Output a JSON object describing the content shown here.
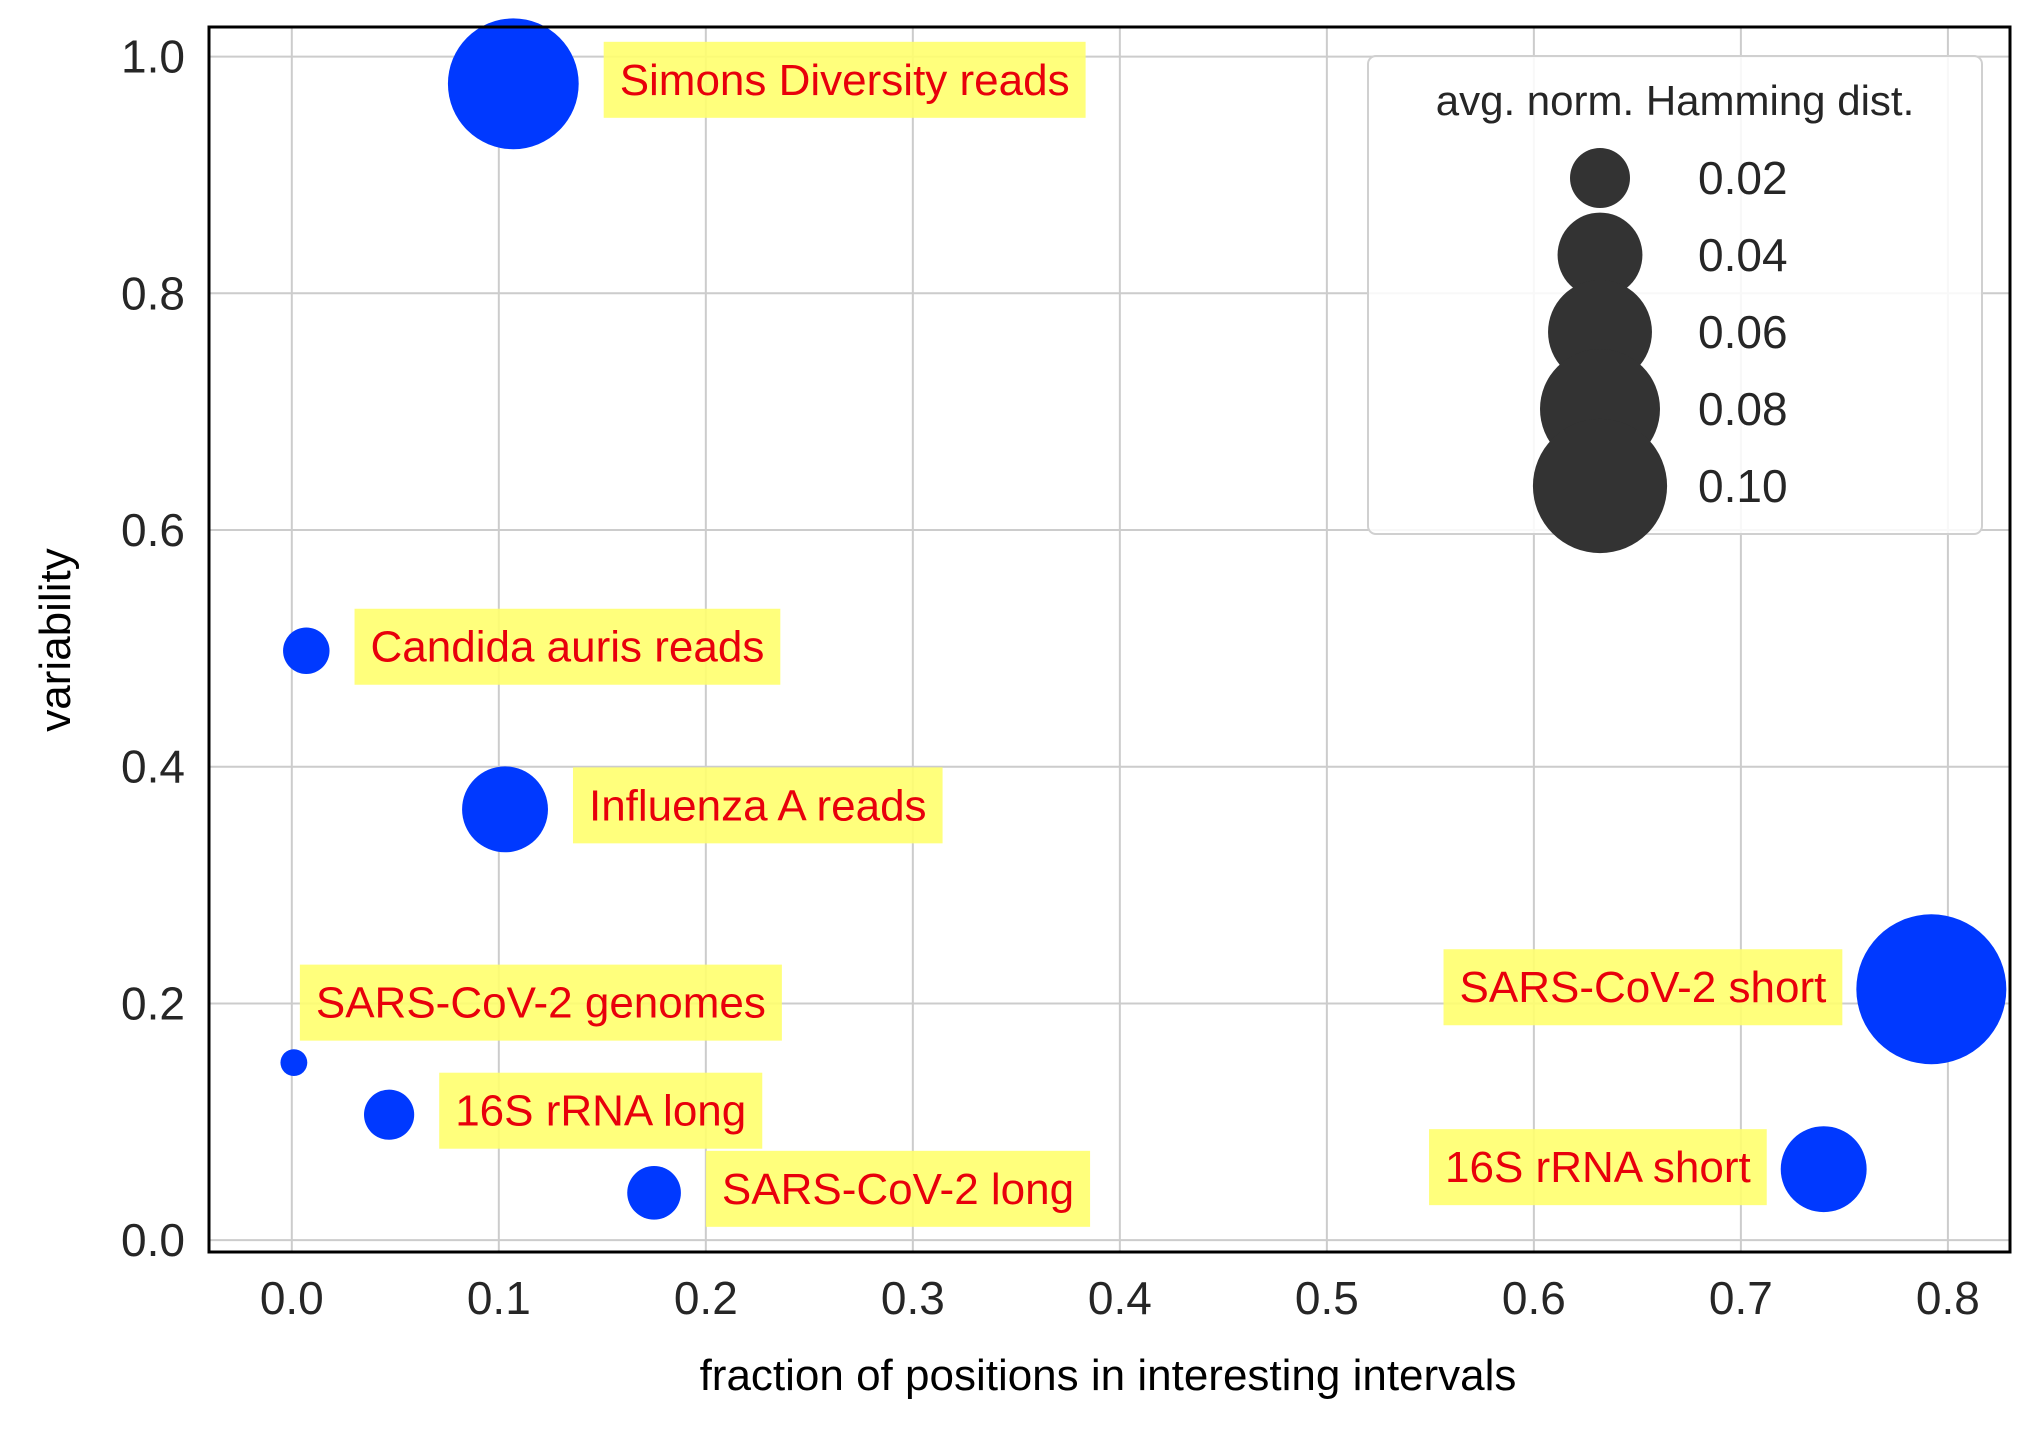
{
  "chart_data": {
    "type": "scatter",
    "xlabel": "fraction of positions in interesting intervals",
    "ylabel": "variability",
    "xlim": [
      -0.04,
      0.83
    ],
    "ylim": [
      -0.01,
      1.025
    ],
    "xticks": [
      0.0,
      0.1,
      0.2,
      0.3,
      0.4,
      0.5,
      0.6,
      0.7,
      0.8
    ],
    "xtick_labels": [
      "0.0",
      "0.1",
      "0.2",
      "0.3",
      "0.4",
      "0.5",
      "0.6",
      "0.7",
      "0.8"
    ],
    "yticks": [
      0.0,
      0.2,
      0.4,
      0.6,
      0.8,
      1.0
    ],
    "ytick_labels": [
      "0.0",
      "0.2",
      "0.4",
      "0.6",
      "0.8",
      "1.0"
    ],
    "grid": true,
    "point_color": "#0039ff",
    "label_color": "#e8000b",
    "label_background": "#ffff6e",
    "points": [
      {
        "label": "Simons Diversity reads",
        "x": 0.107,
        "y": 0.977,
        "size_value": 0.095,
        "label_side": "right"
      },
      {
        "label": "Candida auris reads",
        "x": 0.007,
        "y": 0.498,
        "size_value": 0.012,
        "label_side": "right"
      },
      {
        "label": "Influenza A reads",
        "x": 0.103,
        "y": 0.364,
        "size_value": 0.041,
        "label_side": "right"
      },
      {
        "label": "SARS-CoV-2 genomes",
        "x": 0.001,
        "y": 0.15,
        "size_value": 0.004,
        "label_side": "above-right"
      },
      {
        "label": "16S rRNA long",
        "x": 0.047,
        "y": 0.106,
        "size_value": 0.014,
        "label_side": "right"
      },
      {
        "label": "SARS-CoV-2 long",
        "x": 0.175,
        "y": 0.04,
        "size_value": 0.016,
        "label_side": "right"
      },
      {
        "label": "SARS-CoV-2 short",
        "x": 0.792,
        "y": 0.212,
        "size_value": 0.125,
        "label_side": "left"
      },
      {
        "label": "16S rRNA short",
        "x": 0.74,
        "y": 0.06,
        "size_value": 0.041,
        "label_side": "left"
      }
    ],
    "legend": {
      "title": "avg. norm. Hamming dist.",
      "placement": "upper right",
      "marker_color": "#333333",
      "entries": [
        {
          "label": "0.02",
          "size_value": 0.02
        },
        {
          "label": "0.04",
          "size_value": 0.04
        },
        {
          "label": "0.06",
          "size_value": 0.06
        },
        {
          "label": "0.08",
          "size_value": 0.08
        },
        {
          "label": "0.10",
          "size_value": 0.1
        }
      ]
    }
  }
}
